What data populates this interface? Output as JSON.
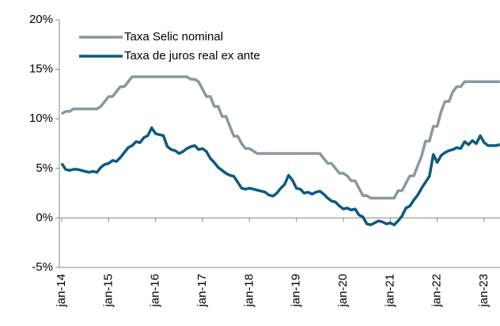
{
  "chart_data": {
    "type": "line",
    "categories": [
      "jan-14",
      null,
      null,
      null,
      null,
      null,
      null,
      null,
      null,
      null,
      null,
      null,
      "jan-15",
      null,
      null,
      null,
      null,
      null,
      null,
      null,
      null,
      null,
      null,
      null,
      "jan-16",
      null,
      null,
      null,
      null,
      null,
      null,
      null,
      null,
      null,
      null,
      null,
      "jan-17",
      null,
      null,
      null,
      null,
      null,
      null,
      null,
      null,
      null,
      null,
      null,
      "jan-18",
      null,
      null,
      null,
      null,
      null,
      null,
      null,
      null,
      null,
      null,
      null,
      "jan-19",
      null,
      null,
      null,
      null,
      null,
      null,
      null,
      null,
      null,
      null,
      null,
      "jan-20",
      null,
      null,
      null,
      null,
      null,
      null,
      null,
      null,
      null,
      null,
      null,
      "jan-21",
      null,
      null,
      null,
      null,
      null,
      null,
      null,
      null,
      null,
      null,
      null,
      "jan-22",
      null,
      null,
      null,
      null,
      null,
      null,
      null,
      null,
      null,
      null,
      null,
      "jan-23",
      null,
      null,
      null,
      null
    ],
    "series": [
      {
        "name": "Taxa Selic nominal",
        "color": "#8c96a3",
        "values": [
          10.5,
          10.75,
          10.75,
          11,
          11,
          11,
          11,
          11,
          11,
          11,
          11.25,
          11.75,
          12.25,
          12.25,
          12.75,
          13.25,
          13.25,
          13.75,
          14.25,
          14.25,
          14.25,
          14.25,
          14.25,
          14.25,
          14.25,
          14.25,
          14.25,
          14.25,
          14.25,
          14.25,
          14.25,
          14.25,
          14.25,
          14,
          14,
          13.75,
          13,
          12.25,
          12.25,
          11.25,
          11.25,
          10.25,
          10.25,
          9.25,
          8.25,
          8.25,
          7.5,
          7,
          7,
          6.75,
          6.5,
          6.5,
          6.5,
          6.5,
          6.5,
          6.5,
          6.5,
          6.5,
          6.5,
          6.5,
          6.5,
          6.5,
          6.5,
          6.5,
          6.5,
          6.5,
          6.5,
          6,
          5.5,
          5.5,
          5,
          4.5,
          4.5,
          4.25,
          3.75,
          3.75,
          3,
          2.25,
          2.25,
          2,
          2,
          2,
          2,
          2,
          2,
          2,
          2.75,
          2.75,
          3.5,
          4.25,
          4.25,
          5.25,
          6.25,
          7.75,
          7.75,
          9.25,
          9.25,
          10.75,
          11.75,
          11.75,
          12.75,
          13.25,
          13.25,
          13.75,
          13.75,
          13.75,
          13.75,
          13.75,
          13.75,
          13.75,
          13.75,
          13.75,
          13.75
        ]
      },
      {
        "name": "Taxa de juros real ex ante",
        "color": "#0b5a80",
        "values": [
          5.5,
          4.9,
          4.8,
          4.9,
          4.9,
          4.8,
          4.7,
          4.6,
          4.7,
          4.6,
          5.1,
          5.4,
          5.5,
          5.8,
          5.7,
          6.1,
          6.6,
          7.1,
          7.3,
          7.7,
          7.6,
          8.1,
          8.3,
          9.1,
          8.5,
          8.4,
          8.3,
          7.2,
          6.9,
          6.8,
          6.5,
          6.7,
          7.0,
          7.2,
          7.3,
          6.9,
          7.0,
          6.7,
          6.0,
          5.6,
          5.1,
          4.8,
          4.5,
          4.3,
          4.2,
          3.6,
          3.0,
          2.9,
          3.0,
          2.9,
          2.8,
          2.7,
          2.6,
          2.3,
          2.2,
          2.5,
          3.0,
          3.4,
          4.3,
          3.8,
          3.0,
          2.9,
          2.5,
          2.6,
          2.4,
          2.6,
          2.7,
          2.4,
          2.0,
          1.7,
          1.6,
          1.2,
          0.9,
          1.0,
          0.8,
          0.9,
          0.3,
          0.1,
          -0.6,
          -0.7,
          -0.5,
          -0.3,
          -0.4,
          -0.6,
          -0.5,
          -0.7,
          -0.3,
          0.2,
          1.0,
          1.2,
          1.8,
          2.3,
          3.0,
          3.6,
          4.2,
          6.4,
          5.6,
          6.3,
          6.6,
          6.8,
          6.9,
          7.1,
          7.0,
          7.7,
          7.4,
          7.8,
          7.5,
          8.3,
          7.6,
          7.3,
          7.3,
          7.3,
          7.4
        ]
      }
    ],
    "ylim": [
      -5,
      20
    ],
    "yticks": [
      {
        "value": -5,
        "label": "-5%"
      },
      {
        "value": 0,
        "label": "0%"
      },
      {
        "value": 5,
        "label": "5%"
      },
      {
        "value": 10,
        "label": "10%"
      },
      {
        "value": 15,
        "label": "15%"
      },
      {
        "value": 20,
        "label": "20%"
      }
    ],
    "legend": "upper left"
  }
}
